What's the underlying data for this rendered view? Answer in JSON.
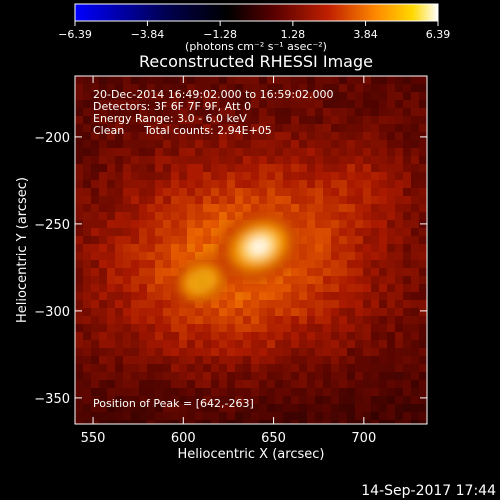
{
  "chart_data": {
    "type": "heatmap",
    "title": "Reconstructed RHESSI Image",
    "xlabel": "Heliocentric X (arcsec)",
    "ylabel": "Heliocentric Y (arcsec)",
    "xlim": [
      540,
      735
    ],
    "ylim": [
      -365,
      -165
    ],
    "x_ticks": [
      550,
      600,
      650,
      700
    ],
    "y_ticks": [
      -350,
      -300,
      -250,
      -200
    ],
    "x_tick_labels": [
      "550",
      "600",
      "650",
      "700"
    ],
    "y_tick_labels": [
      "−350",
      "−300",
      "−250",
      "−200"
    ],
    "colorbar": {
      "min": -6.39,
      "max": 6.39,
      "tick_labels": [
        "−6.39",
        "−3.84",
        "−1.28",
        "1.28",
        "3.84",
        "6.39"
      ],
      "tick_values": [
        -6.39,
        -3.84,
        -1.28,
        1.28,
        3.84,
        6.39
      ],
      "unit_label": "(photons cm⁻² s⁻¹ asec⁻²)",
      "colors": [
        "#0000ff",
        "#000000",
        "#5a0000",
        "#b41400",
        "#ff6a00",
        "#ffc000",
        "#ffffff"
      ]
    },
    "annotations": {
      "time_range": "20-Dec-2014 16:49:02.000 to 16:59:02.000",
      "detectors": "Detectors: 3F 6F 7F 9F, Att 0",
      "energy_range": "Energy Range: 3.0 - 6.0 keV",
      "method": "Clean",
      "total_counts": "Total counts: 2.94E+05",
      "peak_position": "Position of Peak = [642,-263]"
    },
    "sources": [
      {
        "x": 642,
        "y": -263,
        "peak": 6.39
      },
      {
        "x": 610,
        "y": -283,
        "peak": 3.6
      }
    ],
    "grid": false,
    "legend": "none"
  },
  "footer": {
    "timestamp": "14-Sep-2017 17:44"
  }
}
